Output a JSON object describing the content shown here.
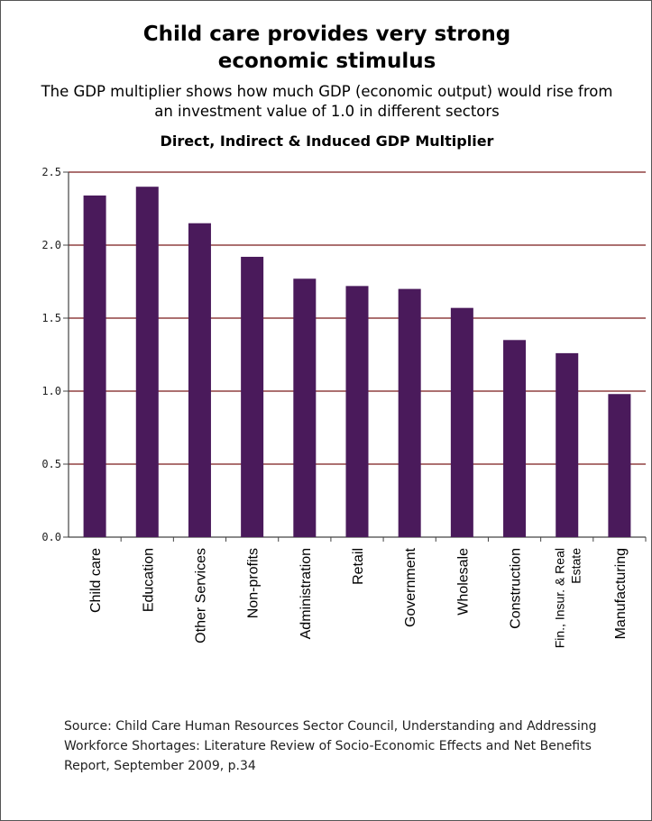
{
  "title_line1": "Child care provides very strong",
  "title_line2": "economic stimulus",
  "subtitle": "The GDP multiplier shows how much GDP (economic output) would rise from an investment value of 1.0 in different sectors",
  "source": "Source: Child Care Human Resources Sector Council, Understanding and Addressing Workforce Shortages: Literature Review of Socio-Economic Effects and Net Benefits Report, September 2009, p.34",
  "colors": {
    "bar": "#4a1a5b",
    "grid": "#7a1a1a",
    "axis": "#444444"
  },
  "chart_data": {
    "type": "bar",
    "title": "Direct, Indirect & Induced GDP Multiplier",
    "xlabel": "",
    "ylabel": "",
    "ylim": [
      0,
      2.5
    ],
    "yticks": [
      "0.0",
      "0.5",
      "1.0",
      "1.5",
      "2.0",
      "2.5"
    ],
    "grid": true,
    "categories": [
      [
        "Child care"
      ],
      [
        "Education"
      ],
      [
        "Other Services"
      ],
      [
        "Non-profits"
      ],
      [
        "Administration"
      ],
      [
        "Retail"
      ],
      [
        "Government"
      ],
      [
        "Wholesale"
      ],
      [
        "Construction"
      ],
      [
        "Fin., Insur. & Real",
        "Estate"
      ],
      [
        "Manufacturing"
      ]
    ],
    "values": [
      2.34,
      2.4,
      2.15,
      1.92,
      1.77,
      1.72,
      1.7,
      1.57,
      1.35,
      1.26,
      0.98
    ]
  }
}
